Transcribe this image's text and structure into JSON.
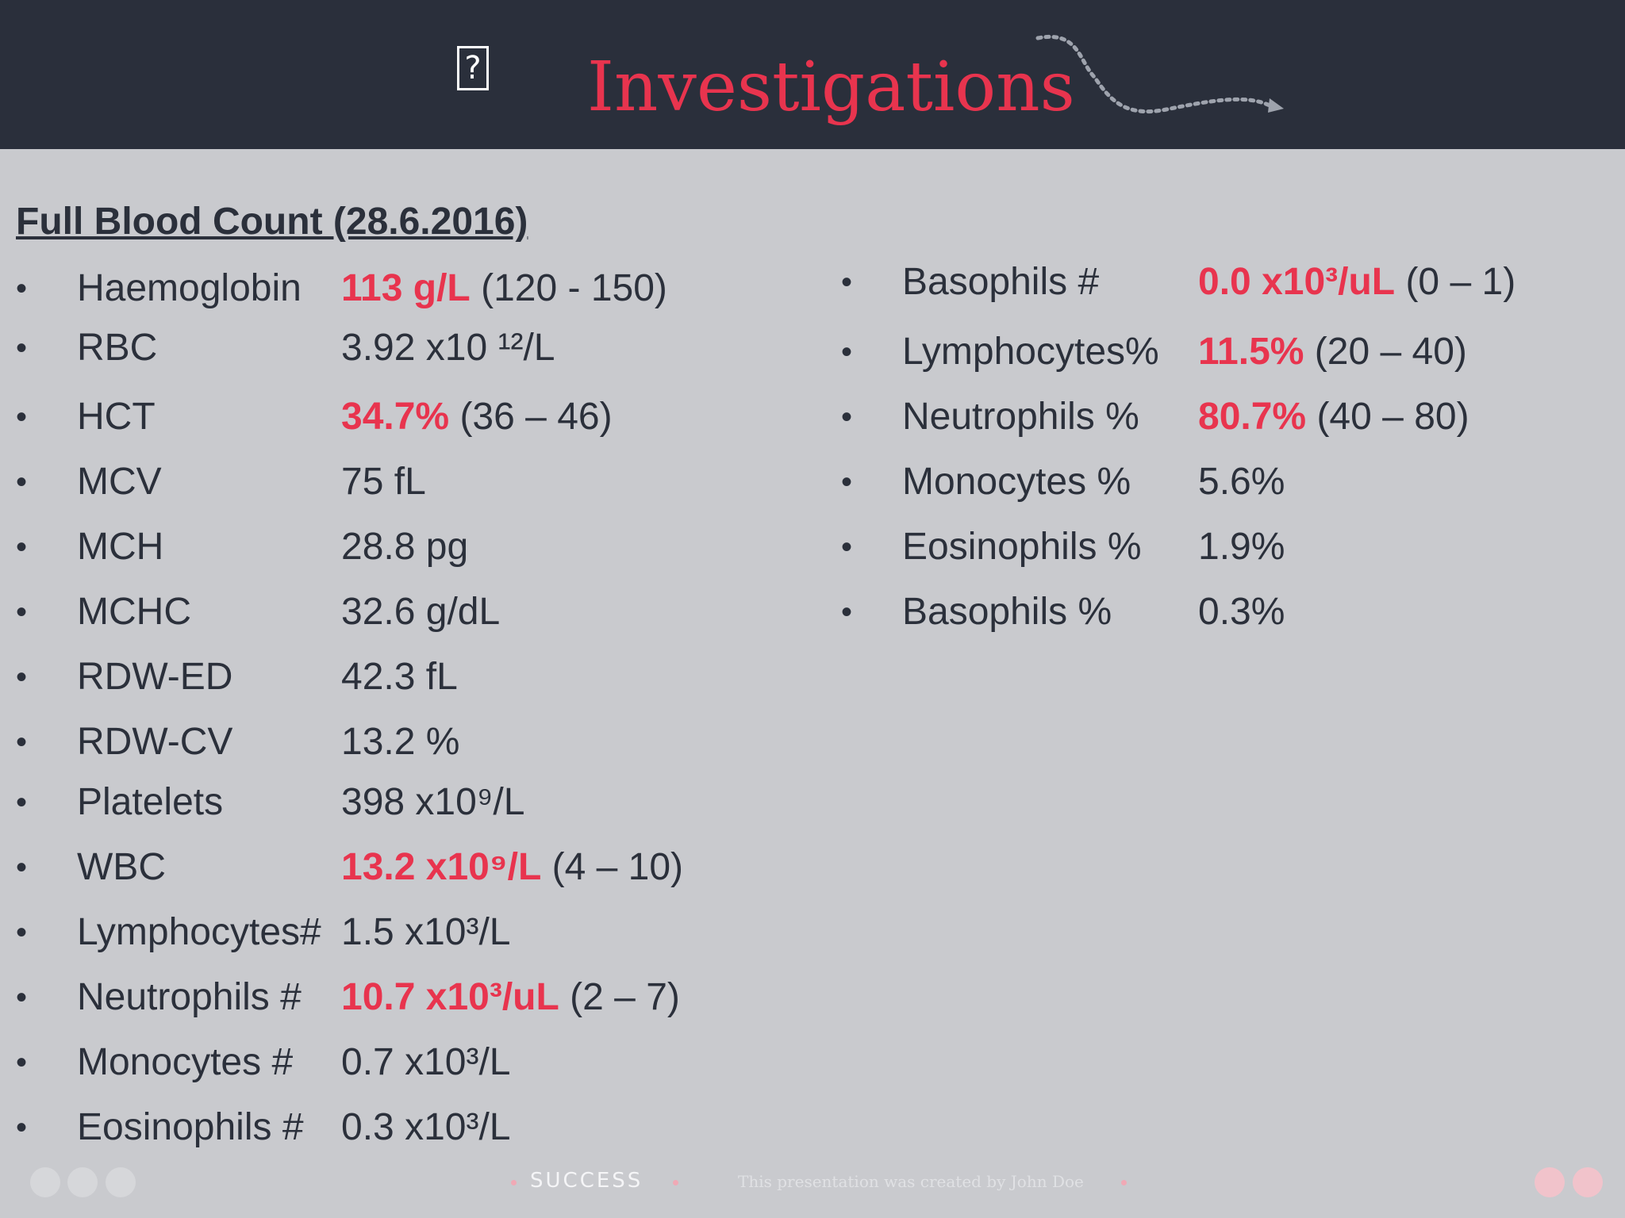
{
  "slide": {
    "title": "Investigations",
    "header_icon": "?",
    "section_heading": "Full Blood Count (28.6.2016)"
  },
  "left_list": [
    {
      "label": "Haemoglobin",
      "value": "113 g/L",
      "range": " (120 - 150)",
      "abnormal": true
    },
    {
      "label": "RBC",
      "value": "3.92 x10 ¹²/L",
      "abnormal": false
    },
    {
      "label": "HCT",
      "value": "34.7%",
      "range": " (36 – 46)",
      "abnormal": true
    },
    {
      "label": "MCV",
      "value": "75 fL",
      "abnormal": false
    },
    {
      "label": "MCH",
      "value": "28.8 pg",
      "abnormal": false
    },
    {
      "label": "MCHC",
      "value": "32.6 g/dL",
      "abnormal": false
    },
    {
      "label": "RDW-ED",
      "value": "42.3 fL",
      "abnormal": false
    },
    {
      "label": "RDW-CV",
      "value": "13.2 %",
      "abnormal": false
    },
    {
      "label": "Platelets",
      "value": "398 x10⁹/L",
      "abnormal": false
    },
    {
      "label": "WBC",
      "value": "13.2 x10⁹/L",
      "range": " (4 – 10)",
      "abnormal": true
    },
    {
      "label": "Lymphocytes#",
      "value": "1.5 x10³/L",
      "abnormal": false
    },
    {
      "label": "Neutrophils #",
      "value": "10.7 x10³/uL",
      "range": " (2 – 7)",
      "abnormal": true
    },
    {
      "label": "Monocytes #",
      "value": "0.7 x10³/L",
      "abnormal": false
    },
    {
      "label": "Eosinophils #",
      "value": "0.3 x10³/L",
      "abnormal": false
    }
  ],
  "right_list": [
    {
      "label": "Basophils #",
      "value": "0.0 x10³/uL",
      "range": " (0 – 1)",
      "abnormal": true
    },
    {
      "label": "Lymphocytes%",
      "value": "11.5%",
      "range": " (20 – 40)",
      "abnormal": true
    },
    {
      "label": "Neutrophils %",
      "value": "80.7%",
      "range": " (40 – 80)",
      "abnormal": true
    },
    {
      "label": "Monocytes %",
      "value": "5.6%",
      "abnormal": false
    },
    {
      "label": "Eosinophils %",
      "value": "1.9%",
      "abnormal": false
    },
    {
      "label": "Basophils %",
      "value": "0.3%",
      "abnormal": false
    }
  ],
  "bullet": "•",
  "footer": {
    "brand": "SUCCESS",
    "note": "This presentation was created by John Doe"
  },
  "colors": {
    "header_bg": "#2a2f3b",
    "slide_bg": "#c9cace",
    "accent": "#e8344e",
    "text": "#2b303b"
  }
}
